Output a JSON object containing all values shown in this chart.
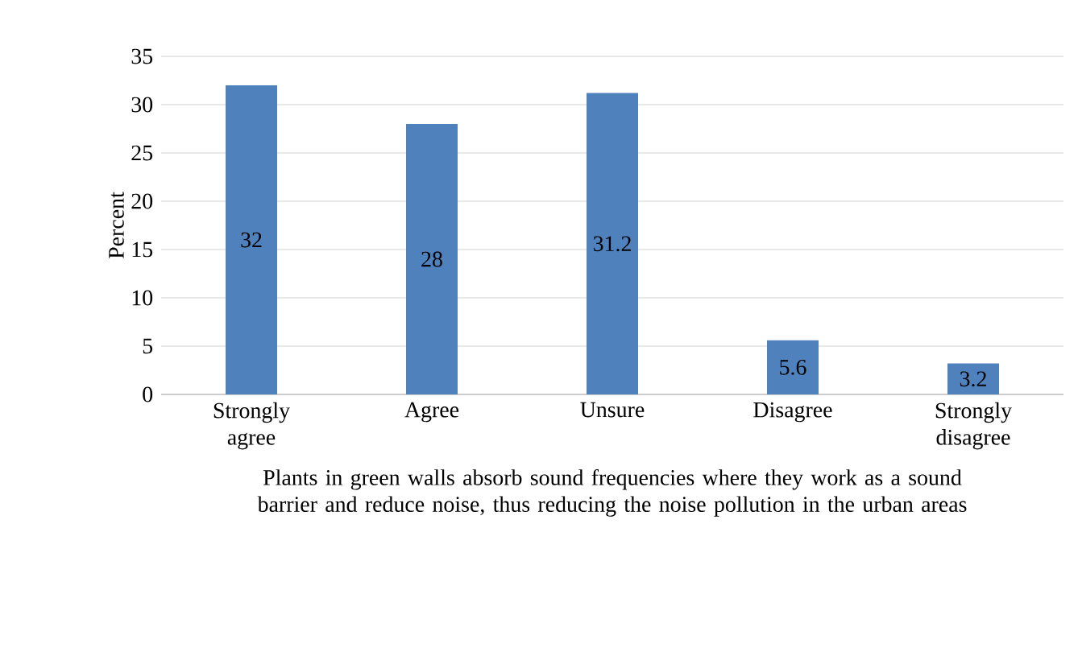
{
  "chart_data": {
    "type": "bar",
    "categories": [
      "Strongly agree",
      "Agree",
      "Unsure",
      "Disagree",
      "Strongly disagree"
    ],
    "values": [
      32,
      28,
      31.2,
      5.6,
      3.2
    ],
    "color": "#4f81bd",
    "ylabel": "Percent",
    "xlabel": "Plants in green walls absorb sound frequencies where they work as a sound barrier and reduce noise, thus reducing the noise pollution in the urban areas",
    "ylim": [
      0,
      35
    ],
    "yticks": [
      0,
      5,
      10,
      15,
      20,
      25,
      30,
      35
    ],
    "grid": "y",
    "data_labels": true
  }
}
